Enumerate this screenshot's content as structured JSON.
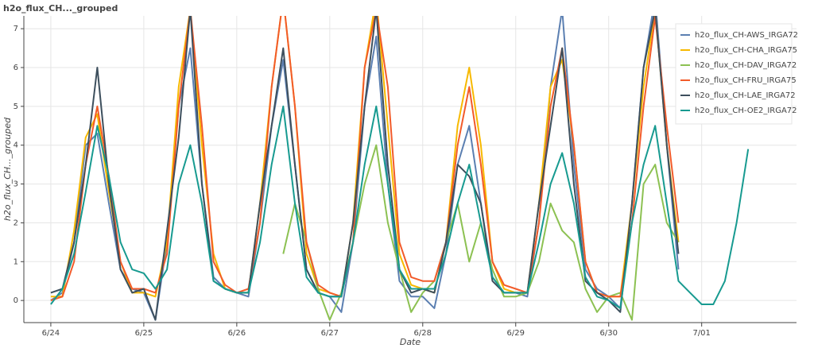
{
  "chart_data": {
    "type": "line",
    "title": "h2o_flux_CH..._grouped",
    "xlabel": "Date",
    "ylabel": "h2o_flux_CH..._grouped",
    "x": [
      0,
      0.125,
      0.25,
      0.375,
      0.5,
      0.625,
      0.75,
      0.875,
      1,
      1.125,
      1.25,
      1.375,
      1.5,
      1.625,
      1.75,
      1.875,
      2,
      2.125,
      2.25,
      2.375,
      2.5,
      2.625,
      2.75,
      2.875,
      3,
      3.125,
      3.25,
      3.375,
      3.5,
      3.625,
      3.75,
      3.875,
      4,
      4.125,
      4.25,
      4.375,
      4.5,
      4.625,
      4.75,
      4.875,
      5,
      5.125,
      5.25,
      5.375,
      5.5,
      5.625,
      5.75,
      5.875,
      6,
      6.125,
      6.25,
      6.375,
      6.5,
      6.625,
      6.75,
      6.875,
      7,
      7.125,
      7.25,
      7.375,
      7.5
    ],
    "series": [
      {
        "name": "h2o_flux_CH-AWS_IRGA72",
        "color": "#5b7fb1",
        "values": [
          0,
          0.2,
          1.5,
          4,
          4.3,
          2.5,
          0.8,
          0.3,
          0.2,
          -0.5,
          1.5,
          5,
          6.5,
          3,
          0.6,
          0.3,
          0.2,
          0.1,
          2,
          4.5,
          6.2,
          3.5,
          0.8,
          0.2,
          0.1,
          -0.3,
          1.5,
          5,
          6.8,
          3,
          0.5,
          0.1,
          0.1,
          -0.2,
          1.2,
          3.5,
          4.5,
          2.5,
          0.6,
          0.2,
          0.2,
          0.1,
          2,
          5.5,
          7.5,
          3.5,
          0.8,
          0.3,
          0.1,
          -0.2,
          2.5,
          6,
          7.8,
          4,
          0.8,
          null,
          null,
          null,
          null,
          null,
          null
        ]
      },
      {
        "name": "h2o_flux_CH-CHA_IRGA75",
        "color": "#f7b900",
        "values": [
          0.1,
          0.1,
          1.8,
          4.2,
          4.8,
          2.8,
          1,
          0.2,
          0.2,
          0.1,
          1.5,
          5.5,
          7.5,
          4,
          1.2,
          0.3,
          0.2,
          0.2,
          2.5,
          5.5,
          7.8,
          5,
          1.2,
          0.3,
          0.2,
          0.1,
          2,
          6,
          7.8,
          4.5,
          1.2,
          0.4,
          0.3,
          0.2,
          1.5,
          4.5,
          6,
          4,
          1,
          0.3,
          0.2,
          0.2,
          2.5,
          5.5,
          6.2,
          4,
          1,
          0.2,
          0.1,
          0.1,
          2.5,
          5.5,
          7.5,
          4,
          1.5,
          null,
          null,
          null,
          null,
          null,
          null
        ]
      },
      {
        "name": "h2o_flux_CH-DAV_IRGA72",
        "color": "#8cc152",
        "values": [
          null,
          null,
          null,
          null,
          null,
          null,
          null,
          null,
          null,
          null,
          null,
          null,
          null,
          null,
          null,
          null,
          null,
          null,
          null,
          null,
          1.2,
          2.5,
          1.5,
          0.3,
          -0.5,
          0.2,
          1.5,
          3,
          4,
          2,
          0.8,
          -0.3,
          0.2,
          0.5,
          1.5,
          2.5,
          1,
          2,
          0.8,
          0.1,
          0.1,
          0.2,
          1,
          2.5,
          1.8,
          1.5,
          0.3,
          -0.3,
          0.1,
          0.2,
          -0.5,
          3,
          3.5,
          2,
          1.5,
          null,
          null,
          null,
          null,
          null,
          null
        ]
      },
      {
        "name": "h2o_flux_CH-FRU_IRGA75",
        "color": "#f25b2a",
        "values": [
          0,
          0.1,
          1,
          3.5,
          5,
          3.2,
          1,
          0.3,
          0.3,
          0.2,
          1.2,
          5,
          7.5,
          4.5,
          1,
          0.4,
          0.2,
          0.3,
          2,
          5.5,
          7.8,
          5,
          1.5,
          0.4,
          0.2,
          0.1,
          1.5,
          6,
          7.5,
          5.5,
          1.5,
          0.6,
          0.5,
          0.5,
          1.5,
          4,
          5.5,
          3.5,
          1,
          0.4,
          0.3,
          0.2,
          2,
          5,
          6.5,
          4,
          1,
          0.2,
          0.1,
          0.1,
          2,
          5,
          7.3,
          4.5,
          2,
          null,
          null,
          null,
          null,
          null,
          null
        ]
      },
      {
        "name": "h2o_flux_CH-LAE_IRGA72",
        "color": "#3d4f5d",
        "values": [
          0.2,
          0.3,
          1.5,
          3.5,
          6,
          3,
          0.8,
          0.2,
          0.3,
          -0.5,
          1.8,
          4.2,
          7.5,
          3,
          0.5,
          0.3,
          0.2,
          0.2,
          2.5,
          4.5,
          6.5,
          3.5,
          0.8,
          0.2,
          0.1,
          0.1,
          2,
          5,
          7.5,
          3.5,
          0.8,
          0.2,
          0.3,
          0.2,
          1.5,
          3.5,
          3.2,
          2.5,
          0.5,
          0.2,
          0.2,
          0.2,
          2.5,
          4.5,
          6.5,
          3,
          0.5,
          0.2,
          0,
          -0.3,
          2.5,
          6,
          7.5,
          4,
          1.2,
          null,
          null,
          null,
          null,
          null,
          null
        ]
      },
      {
        "name": "h2o_flux_CH-OE2_IRGA72",
        "color": "#179a90",
        "values": [
          -0.1,
          0.3,
          1.2,
          2.8,
          4.5,
          3.2,
          1.5,
          0.8,
          0.7,
          0.3,
          0.8,
          3,
          4,
          2.5,
          0.5,
          0.3,
          0.2,
          0.2,
          1.5,
          3.5,
          5,
          2.5,
          0.6,
          0.2,
          0.1,
          0.1,
          1.5,
          3.5,
          5,
          3,
          0.8,
          0.3,
          0.3,
          0.3,
          1.2,
          2.5,
          3.5,
          2,
          0.6,
          0.2,
          0.2,
          0.2,
          1.5,
          3,
          3.8,
          2.5,
          0.6,
          0.1,
          0,
          -0.2,
          2,
          3.5,
          4.5,
          2.5,
          0.5,
          0.2,
          -0.1,
          -0.1,
          0.5,
          2,
          3.9
        ]
      }
    ],
    "xlim": [
      -0.29,
      8.02
    ],
    "xticks": [
      {
        "value": 0,
        "label": "6/24"
      },
      {
        "value": 1,
        "label": "6/25"
      },
      {
        "value": 2,
        "label": "6/26"
      },
      {
        "value": 3,
        "label": "6/27"
      },
      {
        "value": 4,
        "label": "6/28"
      },
      {
        "value": 5,
        "label": "6/29"
      },
      {
        "value": 6,
        "label": "6/30"
      },
      {
        "value": 7,
        "label": "7/01"
      }
    ],
    "ylim": [
      -0.57,
      7.33
    ],
    "yticks": [
      0,
      1,
      2,
      3,
      4,
      5,
      6,
      7
    ],
    "grid": true,
    "legend": "top-right"
  }
}
